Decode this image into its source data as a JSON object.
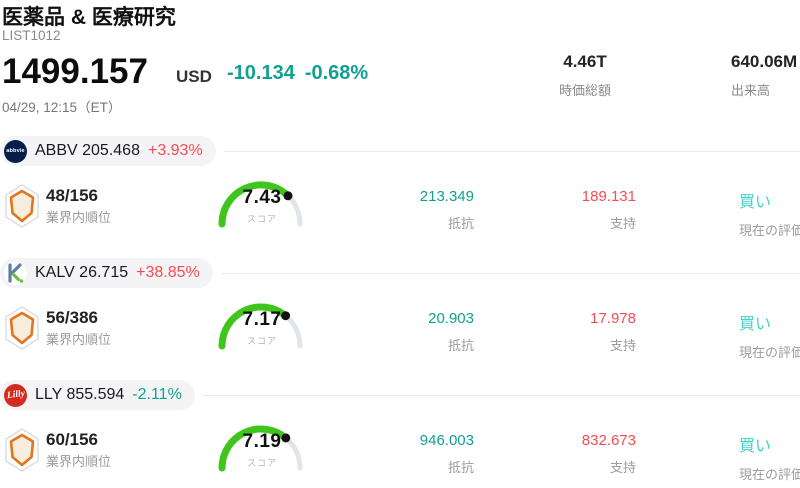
{
  "header": {
    "title": "医薬品 & 医療研究",
    "subtitle": "LIST1012",
    "price": "1499.157",
    "currency": "USD",
    "change": "-10.134",
    "change_pct": "-0.68%",
    "change_dir": "down",
    "timestamp": "04/29, 12:15（ET）",
    "stats": [
      {
        "value": "4.46T",
        "label": "時価総額"
      },
      {
        "value": "640.06M",
        "label": "出来高"
      }
    ]
  },
  "colors": {
    "up_red": "#fa4b52",
    "down_teal": "#11a091",
    "rating_cyan": "#40d2cc",
    "gauge_green": "#3ec61c",
    "gauge_track": "#e1e4ea"
  },
  "rows": [
    {
      "logo": "abbvie-logo",
      "logo_text": "abbvie",
      "ticker_price": "ABBV 205.468",
      "change": "+3.93%",
      "dir": "up",
      "rank": "48/156",
      "rank_label": "業界内順位",
      "score": 7.43,
      "score_text": "7.43",
      "score_label": "スコア",
      "resistance": "213.349",
      "resistance_label": "抵抗",
      "support": "189.131",
      "support_label": "支持",
      "rating": "買い",
      "rating_label": "現在の評価"
    },
    {
      "logo": "kalv-logo",
      "logo_text": "K",
      "ticker_price": "KALV 26.715",
      "change": "+38.85%",
      "dir": "up",
      "rank": "56/386",
      "rank_label": "業界内順位",
      "score": 7.17,
      "score_text": "7.17",
      "score_label": "スコア",
      "resistance": "20.903",
      "resistance_label": "抵抗",
      "support": "17.978",
      "support_label": "支持",
      "rating": "買い",
      "rating_label": "現在の評価"
    },
    {
      "logo": "lilly-logo",
      "logo_text": "Lilly",
      "ticker_price": "LLY 855.594",
      "change": "-2.11%",
      "dir": "down",
      "rank": "60/156",
      "rank_label": "業界内順位",
      "score": 7.19,
      "score_text": "7.19",
      "score_label": "スコア",
      "resistance": "946.003",
      "resistance_label": "抵抗",
      "support": "832.673",
      "support_label": "支持",
      "rating": "買い",
      "rating_label": "現在の評価"
    }
  ]
}
